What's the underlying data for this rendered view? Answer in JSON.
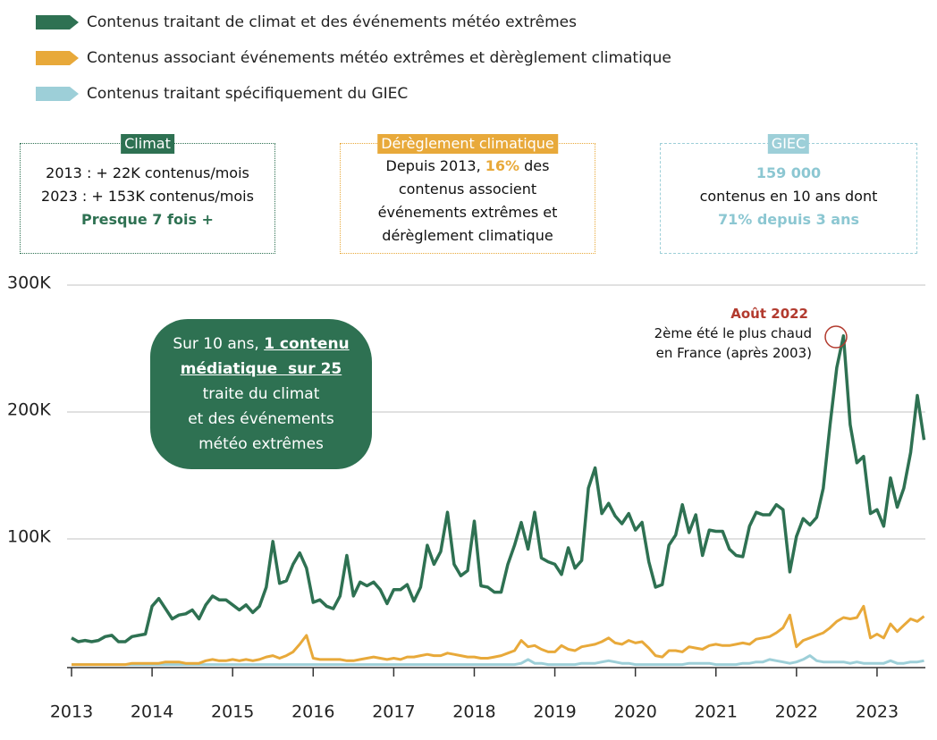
{
  "chart_data": {
    "type": "line",
    "boxes": [
      {
        "title": "Climat",
        "lines": [
          [
            "2013 : + 22K contenus/mois"
          ],
          [
            "2023 : + 153K contenus/mois"
          ],
          [
            "Presque 7 fois +"
          ]
        ]
      },
      {
        "title": "Dérèglement climatique",
        "lines": [
          [
            "Depuis 2013, ",
            "16%",
            " des"
          ],
          [
            "contenus associent"
          ],
          [
            "événements extrêmes et"
          ],
          [
            "dérèglement climatique"
          ]
        ]
      },
      {
        "title": "GIEC",
        "lines": [
          [
            "159 000"
          ],
          [
            "contenus en 10 ans dont"
          ],
          [
            "71% depuis 3 ans"
          ]
        ]
      }
    ],
    "callout": [
      [
        "Sur 10 ans, ",
        "1 contenu"
      ],
      [
        "médiatique  sur 25"
      ],
      [
        "traite du climat"
      ],
      [
        "et des événements"
      ],
      [
        "météo extrêmes"
      ]
    ],
    "annotation": {
      "title": "Août 2022",
      "lines": [
        "2ème été le plus chaud",
        "en France (après 2003)"
      ]
    },
    "xlim": [
      2012.9,
      2023.7
    ],
    "xticks": [
      2013,
      2014,
      2015,
      2016,
      2017,
      2018,
      2019,
      2020,
      2021,
      2022,
      2023
    ],
    "ylim": [
      0,
      300
    ],
    "yticks": [
      {
        "value": 100,
        "label": "100K"
      },
      {
        "value": 200,
        "label": "200K"
      },
      {
        "value": 300,
        "label": "300K"
      }
    ],
    "grid": true,
    "x": [
      2013,
      2013.083,
      2013.167,
      2013.25,
      2013.333,
      2013.417,
      2013.5,
      2013.583,
      2013.667,
      2013.75,
      2013.833,
      2013.917,
      2014,
      2014.083,
      2014.167,
      2014.25,
      2014.333,
      2014.417,
      2014.5,
      2014.583,
      2014.667,
      2014.75,
      2014.833,
      2014.917,
      2015,
      2015.083,
      2015.167,
      2015.25,
      2015.333,
      2015.417,
      2015.5,
      2015.583,
      2015.667,
      2015.75,
      2015.833,
      2015.917,
      2016,
      2016.083,
      2016.167,
      2016.25,
      2016.333,
      2016.417,
      2016.5,
      2016.583,
      2016.667,
      2016.75,
      2016.833,
      2016.917,
      2017,
      2017.083,
      2017.167,
      2017.25,
      2017.333,
      2017.417,
      2017.5,
      2017.583,
      2017.667,
      2017.75,
      2017.833,
      2017.917,
      2018,
      2018.083,
      2018.167,
      2018.25,
      2018.333,
      2018.417,
      2018.5,
      2018.583,
      2018.667,
      2018.75,
      2018.833,
      2018.917,
      2019,
      2019.083,
      2019.167,
      2019.25,
      2019.333,
      2019.417,
      2019.5,
      2019.583,
      2019.667,
      2019.75,
      2019.833,
      2019.917,
      2020,
      2020.083,
      2020.167,
      2020.25,
      2020.333,
      2020.417,
      2020.5,
      2020.583,
      2020.667,
      2020.75,
      2020.833,
      2020.917,
      2021,
      2021.083,
      2021.167,
      2021.25,
      2021.333,
      2021.417,
      2021.5,
      2021.583,
      2021.667,
      2021.75,
      2021.833,
      2021.917,
      2022,
      2022.083,
      2022.167,
      2022.25,
      2022.333,
      2022.417,
      2022.5,
      2022.583,
      2022.667,
      2022.75,
      2022.833,
      2022.917,
      2023,
      2023.083,
      2023.167,
      2023.25,
      2023.333,
      2023.417,
      2023.5,
      2023.583
    ],
    "series": [
      {
        "name": "Contenus traitant de climat et des événements météo extrêmes",
        "color": "#2e7152",
        "values": [
          22,
          19,
          20,
          19,
          20,
          23,
          24,
          19,
          19,
          23,
          24,
          25,
          47,
          53,
          45,
          37,
          40,
          41,
          44,
          37,
          48,
          55,
          52,
          52,
          48,
          44,
          48,
          42,
          47,
          62,
          98,
          65,
          67,
          80,
          89,
          77,
          50,
          52,
          47,
          45,
          55,
          87,
          55,
          66,
          63,
          66,
          60,
          49,
          60,
          60,
          64,
          51,
          62,
          95,
          80,
          90,
          121,
          80,
          71,
          75,
          114,
          63,
          62,
          58,
          58,
          80,
          95,
          113,
          92,
          121,
          85,
          82,
          80,
          72,
          93,
          77,
          83,
          140,
          156,
          120,
          128,
          118,
          112,
          120,
          107,
          113,
          82,
          62,
          64,
          95,
          103,
          127,
          105,
          119,
          87,
          107,
          106,
          106,
          92,
          87,
          86,
          110,
          121,
          119,
          119,
          127,
          123,
          74,
          102,
          116,
          111,
          117,
          140,
          190,
          235,
          260,
          190,
          160,
          165,
          120,
          123,
          110,
          148,
          125,
          140,
          168,
          213,
          178
        ]
      },
      {
        "name": "Contenus associant événements météo extrêmes et dèrèglement climatique",
        "color": "#e8a93a",
        "values": [
          1,
          1,
          1,
          1,
          1,
          1,
          1,
          1,
          1,
          2,
          2,
          2,
          2,
          2,
          3,
          3,
          3,
          2,
          2,
          2,
          4,
          5,
          4,
          4,
          5,
          4,
          5,
          4,
          5,
          7,
          8,
          6,
          8,
          11,
          17,
          24,
          6,
          5,
          5,
          5,
          5,
          4,
          4,
          5,
          6,
          7,
          6,
          5,
          6,
          5,
          7,
          7,
          8,
          9,
          8,
          8,
          10,
          9,
          8,
          7,
          7,
          6,
          6,
          7,
          8,
          10,
          12,
          20,
          15,
          16,
          13,
          11,
          11,
          16,
          13,
          12,
          15,
          16,
          17,
          19,
          22,
          18,
          17,
          20,
          18,
          19,
          14,
          8,
          7,
          12,
          12,
          11,
          15,
          14,
          13,
          16,
          17,
          16,
          16,
          17,
          18,
          17,
          21,
          22,
          23,
          26,
          30,
          40,
          15,
          20,
          22,
          24,
          26,
          30,
          35,
          38,
          37,
          38,
          47,
          22,
          25,
          22,
          33,
          27,
          32,
          37,
          35,
          39
        ]
      },
      {
        "name": "Contenus traitant spécifiquement du GIEC",
        "color": "#9dcfd8",
        "values": [
          1,
          1,
          1,
          1,
          1,
          1,
          1,
          1,
          1,
          1,
          1,
          1,
          1,
          1,
          1,
          1,
          1,
          1,
          1,
          1,
          1,
          1,
          1,
          1,
          1,
          1,
          1,
          1,
          1,
          1,
          1,
          1,
          1,
          1,
          1,
          1,
          1,
          1,
          1,
          1,
          1,
          1,
          1,
          1,
          1,
          1,
          1,
          1,
          1,
          1,
          1,
          1,
          1,
          1,
          1,
          1,
          1,
          1,
          1,
          1,
          1,
          1,
          1,
          1,
          1,
          1,
          1,
          2,
          5,
          2,
          2,
          1,
          1,
          1,
          1,
          1,
          2,
          2,
          2,
          3,
          4,
          3,
          2,
          2,
          1,
          1,
          1,
          1,
          1,
          1,
          1,
          1,
          2,
          2,
          2,
          2,
          1,
          1,
          1,
          1,
          2,
          2,
          3,
          3,
          5,
          4,
          3,
          2,
          3,
          5,
          8,
          4,
          3,
          3,
          3,
          3,
          2,
          3,
          2,
          2,
          2,
          2,
          4,
          2,
          2,
          3,
          3,
          4
        ]
      }
    ]
  }
}
